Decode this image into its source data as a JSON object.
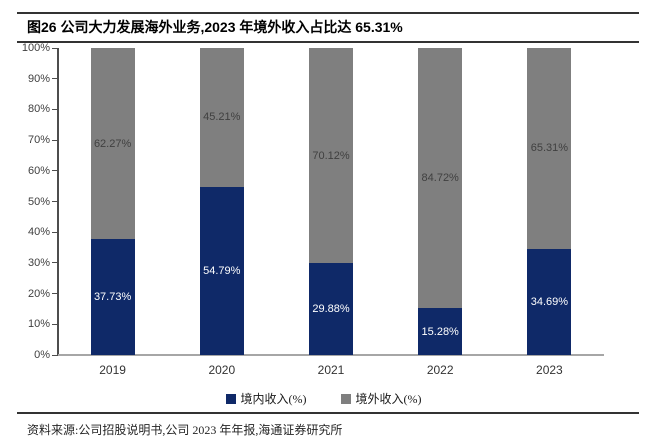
{
  "title": "图26 公司大力发展海外业务,2023 年境外收入占比达 65.31%",
  "chart_data": {
    "type": "bar",
    "stacked": true,
    "categories": [
      "2019",
      "2020",
      "2021",
      "2022",
      "2023"
    ],
    "series": [
      {
        "name": "境内收入(%)",
        "color": "#0f2968",
        "label_color": "#ffffff",
        "values": [
          37.73,
          54.79,
          29.88,
          15.28,
          34.69
        ],
        "labels": [
          "37.73%",
          "54.79%",
          "29.88%",
          "15.28%",
          "34.69%"
        ]
      },
      {
        "name": "境外收入(%)",
        "color": "#7f7f7f",
        "label_color": "#404040",
        "values": [
          62.27,
          45.21,
          70.12,
          84.72,
          65.31
        ],
        "labels": [
          "62.27%",
          "45.21%",
          "70.12%",
          "84.72%",
          "65.31%"
        ]
      }
    ],
    "ylim": [
      0,
      100
    ],
    "ytick_step": 10,
    "ytick_labels": [
      "0%",
      "10%",
      "20%",
      "30%",
      "40%",
      "50%",
      "60%",
      "70%",
      "80%",
      "90%",
      "100%"
    ],
    "grid": false,
    "legend_position": "bottom"
  },
  "footer": {
    "source": "资料来源:公司招股说明书,公司 2023 年年报,海通证券研究所"
  },
  "colors": {
    "domestic": "#0f2968",
    "overseas": "#7f7f7f",
    "axis": "#4d4d4d",
    "baseline": "#a6a6a6",
    "rule": "#333333"
  }
}
